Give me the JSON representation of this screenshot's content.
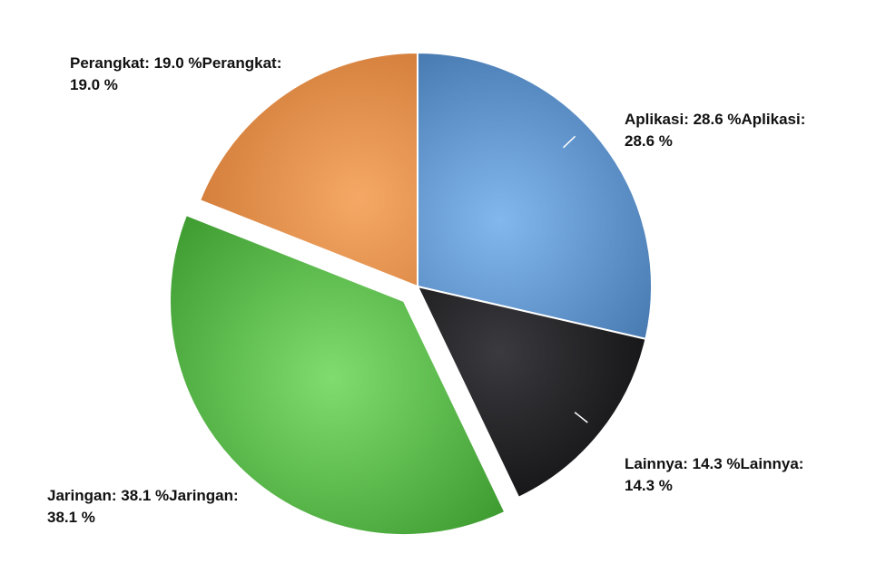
{
  "chart_data": {
    "type": "pie",
    "title": "",
    "slices": [
      {
        "label": "Aplikasi",
        "value": 28.6,
        "display": "28.6 %",
        "color": "#5b93cf",
        "color_light": "#82b7ee",
        "color_dark": "#3d6fa6",
        "exploded": false
      },
      {
        "label": "Lainnya",
        "value": 14.3,
        "display": "14.3 %",
        "color": "#1b1b1d",
        "color_light": "#3a3a3f",
        "color_dark": "#050505",
        "exploded": false
      },
      {
        "label": "Jaringan",
        "value": 38.1,
        "display": "38.1 %",
        "color": "#5cbf4f",
        "color_light": "#80dc6e",
        "color_dark": "#3c9a2f",
        "exploded": true
      },
      {
        "label": "Perangkat",
        "value": 19.0,
        "display": "19.0 %",
        "color": "#e08a45",
        "color_light": "#f5a865",
        "color_dark": "#c86f2c",
        "exploded": false
      }
    ],
    "start_angle": "12 o'clock",
    "direction": "clockwise",
    "label_text": [
      {
        "line1": "Aplikasi: 28.6 %Aplikasi:",
        "line2": "28.6 %"
      },
      {
        "line1": "Lainnya: 14.3 %Lainnya:",
        "line2": "14.3 %"
      },
      {
        "line1": "Jaringan: 38.1 %Jaringan:",
        "line2": "38.1 %"
      },
      {
        "line1": "Perangkat: 19.0 %Perangkat:",
        "line2": "19.0 %"
      }
    ]
  }
}
